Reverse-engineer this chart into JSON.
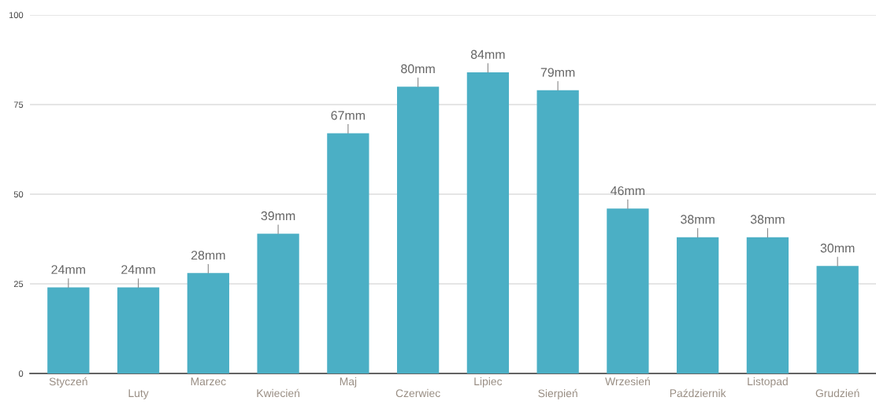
{
  "chart_data": {
    "type": "bar",
    "categories": [
      "Styczeń",
      "Luty",
      "Marzec",
      "Kwiecień",
      "Maj",
      "Czerwiec",
      "Lipiec",
      "Sierpień",
      "Wrzesień",
      "Październik",
      "Listopad",
      "Grudzień"
    ],
    "values": [
      24,
      24,
      28,
      39,
      67,
      80,
      84,
      79,
      46,
      38,
      38,
      30
    ],
    "value_labels": [
      "24mm",
      "24mm",
      "28mm",
      "39mm",
      "67mm",
      "80mm",
      "84mm",
      "79mm",
      "46mm",
      "38mm",
      "38mm",
      "30mm"
    ],
    "color": "#4bafc5",
    "ylim": [
      0,
      100
    ],
    "yticks": [
      0,
      25,
      50,
      75,
      100
    ],
    "grid": "y",
    "legend": false
  }
}
